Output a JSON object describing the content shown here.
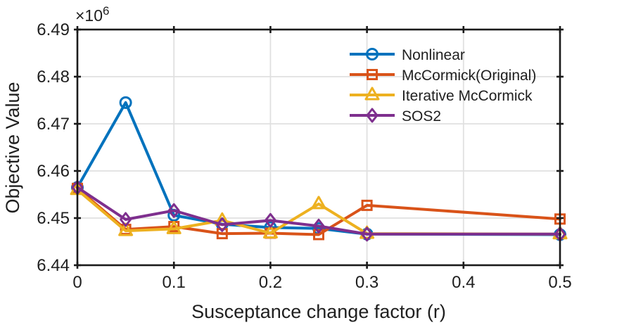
{
  "chart_data": {
    "type": "line",
    "title": "",
    "xlabel": "Susceptance change factor (r)",
    "ylabel": "Objective Value",
    "exponent": {
      "base": "×10",
      "power": "6"
    },
    "x": [
      0,
      0.05,
      0.1,
      0.15,
      0.2,
      0.25,
      0.3,
      0.5
    ],
    "xlim": [
      0,
      0.5
    ],
    "ylim": [
      6440000,
      6490000
    ],
    "xticks": [
      "0",
      "0.1",
      "0.2",
      "0.3",
      "0.4",
      "0.5"
    ],
    "yticks": [
      "6.44",
      "6.45",
      "6.46",
      "6.47",
      "6.48",
      "6.49"
    ],
    "grid": true,
    "legend_position": "upper-right-inside-no-box",
    "colors": {
      "axis": "#1a1a1a",
      "grid": "#e0e0e0",
      "background": "#ffffff"
    },
    "series": [
      {
        "name": "Nonlinear",
        "color": "#0072BD",
        "marker": "circle",
        "values": [
          6456500,
          6474500,
          6450600,
          6448700,
          6448000,
          6447800,
          6446600,
          6446500
        ]
      },
      {
        "name": "McCormick(Original)",
        "color": "#D95319",
        "marker": "square",
        "values": [
          6456300,
          6447600,
          6448200,
          6446700,
          6446800,
          6446500,
          6452700,
          6449800
        ]
      },
      {
        "name": "Iterative McCormick",
        "color": "#EDB120",
        "marker": "triangle",
        "values": [
          6456000,
          6447300,
          6447700,
          6449500,
          6446800,
          6453000,
          6446700,
          6446600
        ]
      },
      {
        "name": "SOS2",
        "color": "#7E2F8E",
        "marker": "diamond",
        "values": [
          6456500,
          6449700,
          6451600,
          6448600,
          6449500,
          6448300,
          6446600,
          6446600
        ]
      }
    ]
  }
}
